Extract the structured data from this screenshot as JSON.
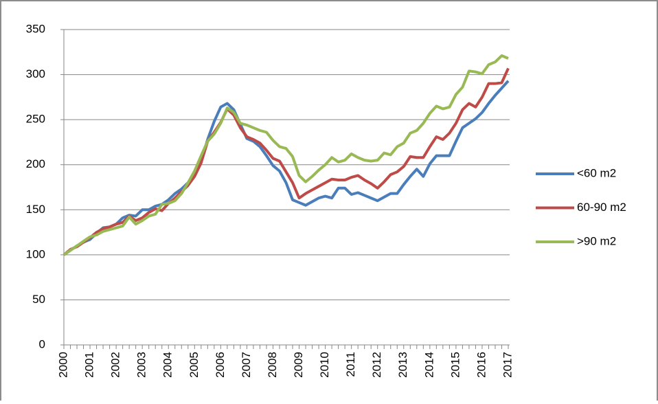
{
  "chart_data": {
    "type": "line",
    "categories": [
      "2000",
      null,
      null,
      null,
      "2001",
      null,
      null,
      null,
      "2002",
      null,
      null,
      null,
      "2003",
      null,
      null,
      null,
      "2004",
      null,
      null,
      null,
      "2005",
      null,
      null,
      null,
      "2006",
      null,
      null,
      null,
      "2007",
      null,
      null,
      null,
      "2008",
      null,
      null,
      null,
      "2009",
      null,
      null,
      null,
      "2010",
      null,
      null,
      null,
      "2011",
      null,
      null,
      null,
      "2012",
      null,
      null,
      null,
      "2013",
      null,
      null,
      null,
      "2014",
      null,
      null,
      null,
      "2015",
      null,
      null,
      null,
      "2016",
      null,
      null,
      null,
      "2017"
    ],
    "series": [
      {
        "name": "<60 m2",
        "color": "#4a7ebb",
        "values": [
          100,
          105,
          110,
          114,
          117,
          124,
          130,
          131,
          134,
          141,
          144,
          143,
          150,
          150,
          154,
          156,
          161,
          168,
          173,
          180,
          188,
          204,
          228,
          248,
          264,
          268,
          261,
          245,
          229,
          226,
          220,
          210,
          199,
          193,
          180,
          161,
          158,
          155,
          159,
          163,
          165,
          163,
          174,
          174,
          167,
          169,
          166,
          163,
          160,
          164,
          168,
          168,
          178,
          187,
          195,
          187,
          201,
          210,
          210,
          210,
          226,
          241,
          246,
          251,
          258,
          268,
          277,
          285,
          293
        ]
      },
      {
        "name": "60-90 m2",
        "color": "#be4b48",
        "values": [
          100,
          106,
          109,
          114,
          119,
          125,
          129,
          131,
          134,
          136,
          143,
          138,
          141,
          147,
          151,
          149,
          157,
          163,
          170,
          177,
          187,
          202,
          226,
          236,
          247,
          262,
          255,
          241,
          231,
          228,
          224,
          216,
          207,
          204,
          192,
          180,
          163,
          168,
          172,
          176,
          180,
          184,
          183,
          183,
          186,
          188,
          183,
          179,
          174,
          181,
          189,
          192,
          198,
          209,
          208,
          208,
          220,
          231,
          228,
          235,
          246,
          261,
          268,
          264,
          275,
          290,
          290,
          291,
          307
        ]
      },
      {
        "name": ">90 m2",
        "color": "#98b954",
        "values": [
          100,
          105,
          110,
          115,
          120,
          122,
          126,
          128,
          130,
          132,
          142,
          134,
          138,
          143,
          145,
          156,
          157,
          160,
          168,
          180,
          193,
          210,
          226,
          234,
          246,
          263,
          258,
          246,
          244,
          241,
          238,
          236,
          227,
          220,
          218,
          209,
          188,
          181,
          187,
          194,
          200,
          208,
          203,
          205,
          212,
          208,
          205,
          204,
          205,
          213,
          211,
          220,
          224,
          235,
          238,
          246,
          257,
          265,
          262,
          264,
          278,
          286,
          304,
          303,
          301,
          311,
          314,
          321,
          318
        ]
      }
    ],
    "ylim": [
      0,
      350
    ],
    "yticks": [
      0,
      50,
      100,
      150,
      200,
      250,
      300,
      350
    ],
    "grid": true,
    "legend": "right"
  }
}
